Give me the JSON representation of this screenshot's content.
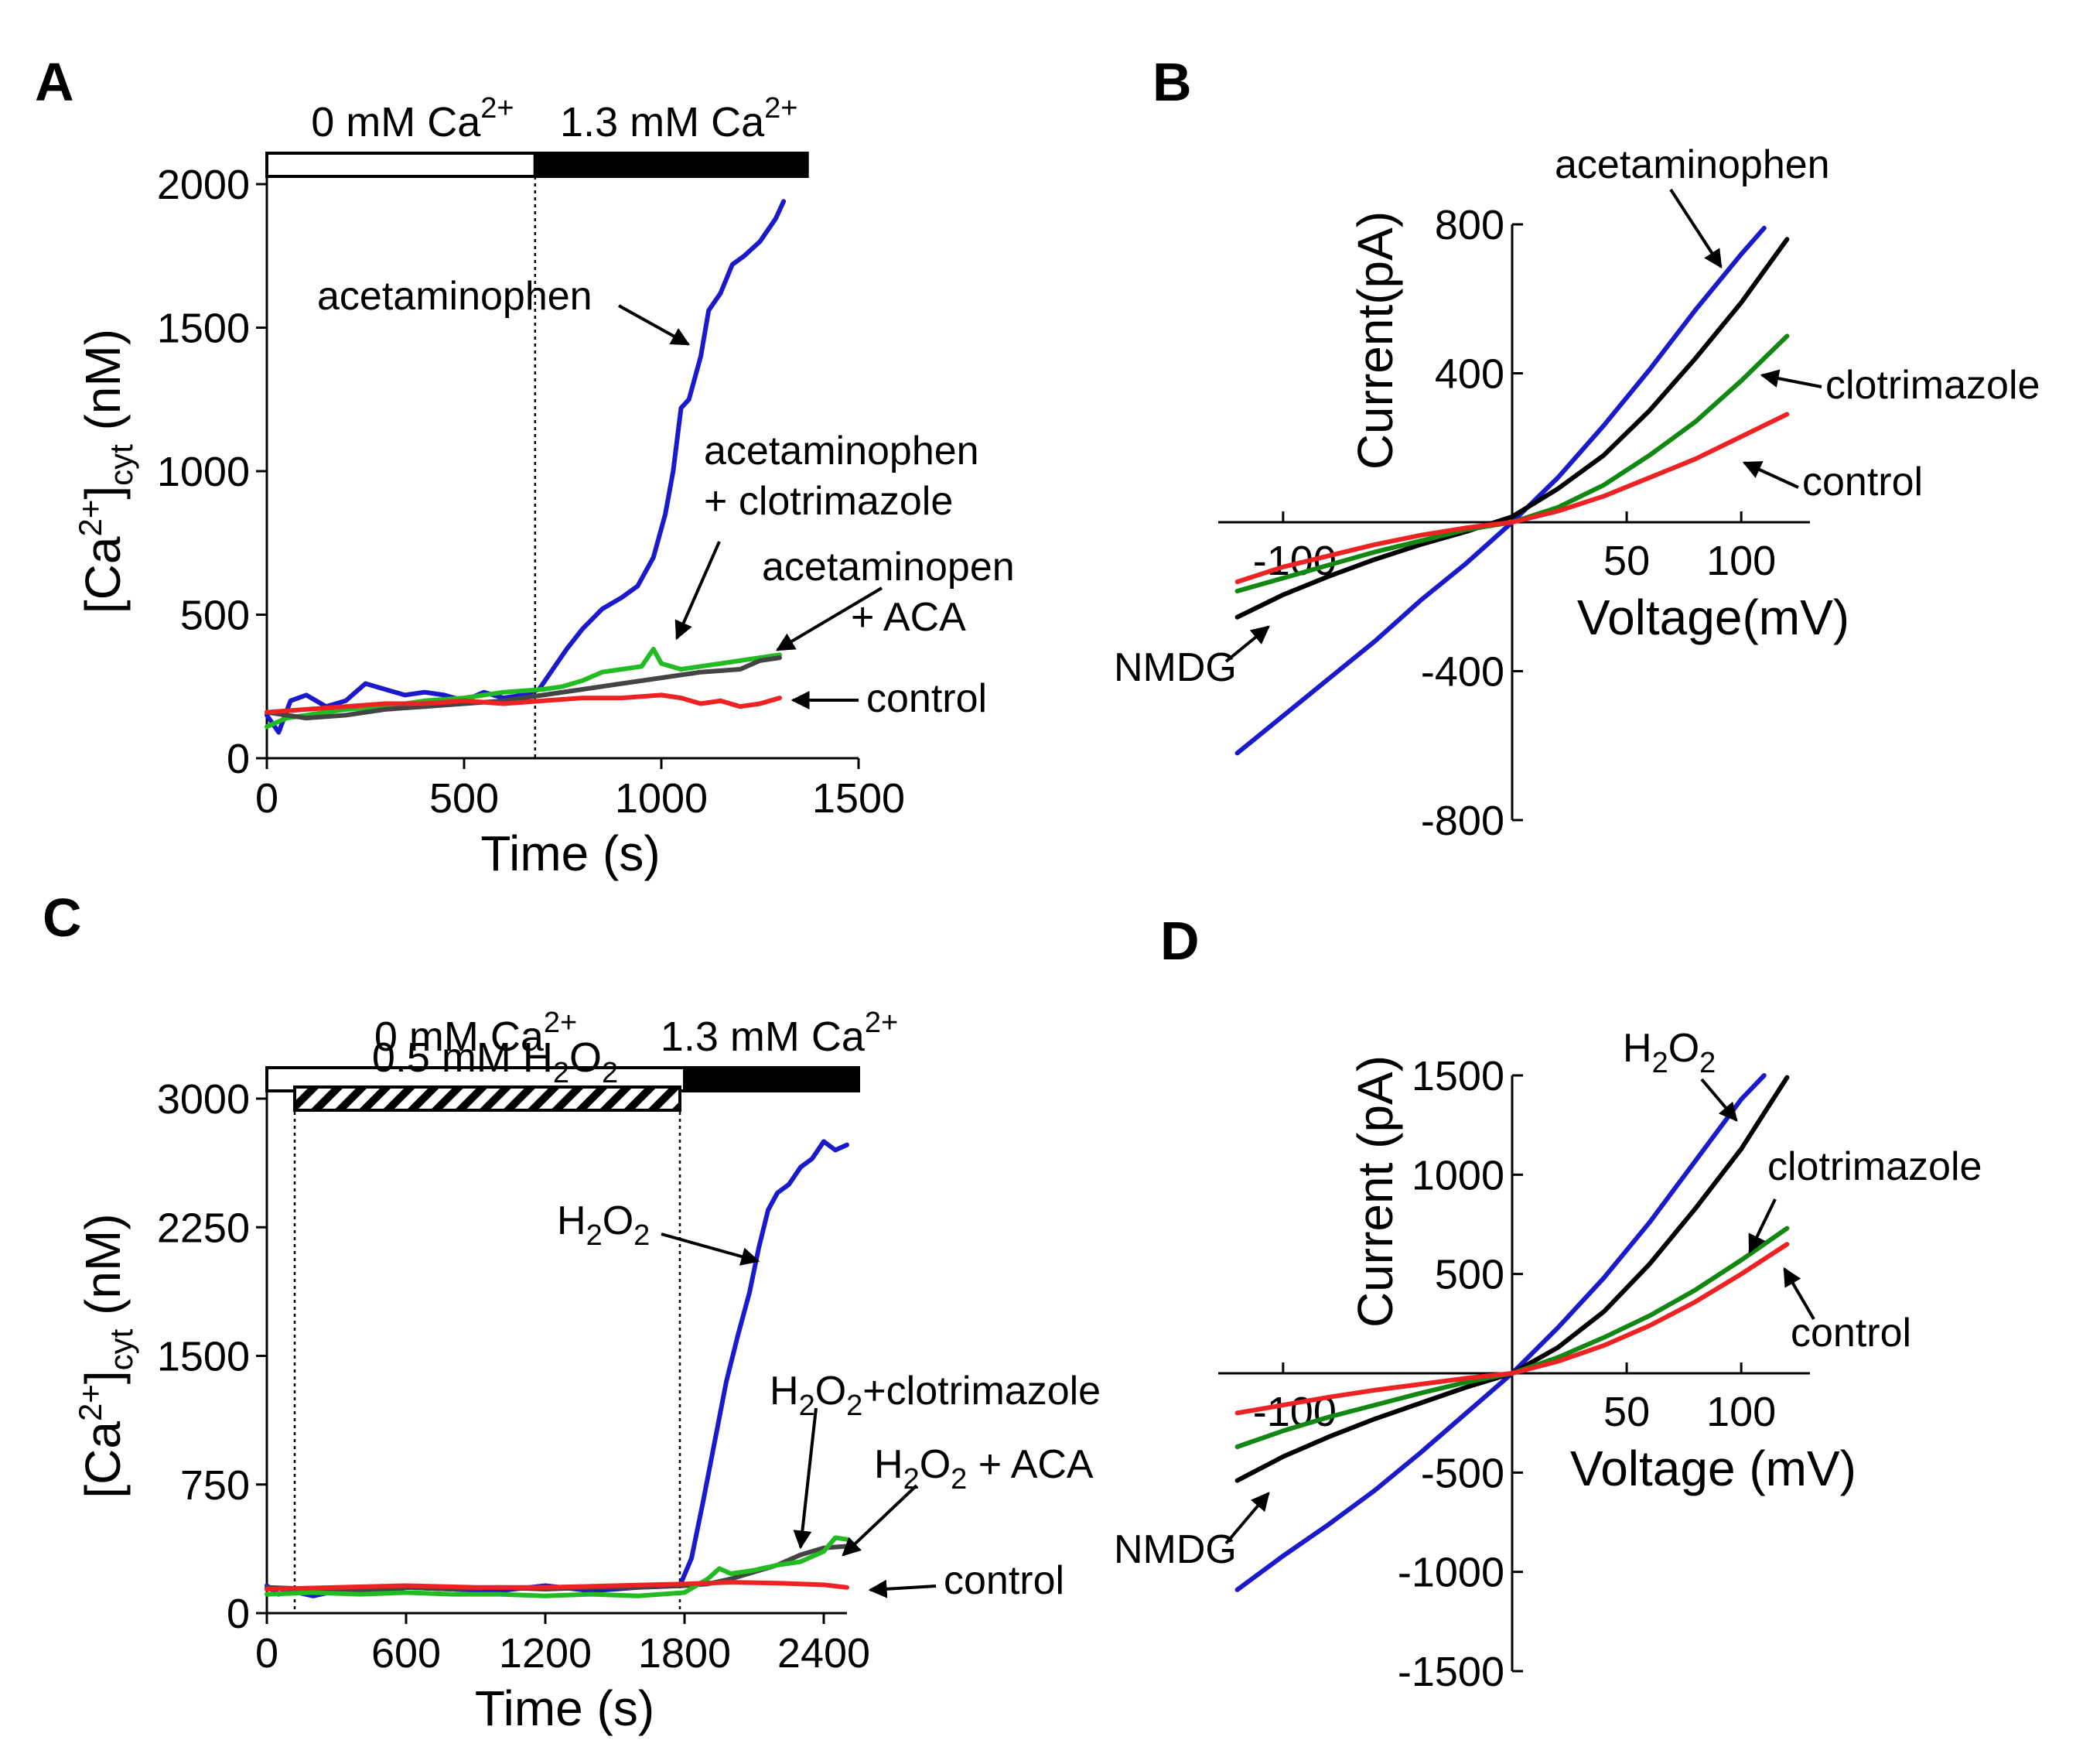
{
  "chart_data": [
    {
      "panel": "A",
      "type": "line",
      "title": "",
      "xlabel": "Time (s)",
      "ylabel_main": "[Ca",
      "ylabel_sup": "2+",
      "ylabel_close": "]",
      "ylabel_sub": "cyt",
      "ylabel_unit": " (nM)",
      "xlim": [
        0,
        1500
      ],
      "ylim": [
        0,
        2000
      ],
      "xticks": [
        0,
        500,
        1000,
        1500
      ],
      "xtick_labels": [
        "0",
        "500",
        "1000",
        "1500"
      ],
      "yticks": [
        0,
        500,
        1000,
        1500,
        2000
      ],
      "ytick_labels": [
        "0",
        "500",
        "1000",
        "1500",
        "2000"
      ],
      "solution_bars": [
        {
          "label": "0 mM Ca",
          "sup": "2+",
          "fill": "#ffffff",
          "x_start": 0,
          "x_end": 680
        },
        {
          "label": "1.3 mM Ca",
          "sup": "2+",
          "fill": "#000000",
          "x_start": 680,
          "x_end": 1370
        }
      ],
      "vlines": [
        680
      ],
      "series": [
        {
          "name": "acetaminophen",
          "color": "#1a1acc",
          "x": [
            0,
            30,
            60,
            100,
            150,
            200,
            250,
            300,
            350,
            400,
            450,
            500,
            550,
            600,
            650,
            690,
            720,
            760,
            800,
            850,
            900,
            940,
            980,
            1010,
            1030,
            1050,
            1070,
            1100,
            1120,
            1150,
            1180,
            1210,
            1250,
            1290,
            1310
          ],
          "y": [
            150,
            90,
            200,
            220,
            180,
            200,
            260,
            240,
            220,
            230,
            220,
            200,
            230,
            210,
            220,
            240,
            300,
            380,
            450,
            520,
            560,
            600,
            700,
            850,
            1000,
            1220,
            1250,
            1400,
            1560,
            1620,
            1720,
            1750,
            1800,
            1880,
            1940
          ]
        },
        {
          "name": "acetaminophen + clotrimazole",
          "color": "#22bb22",
          "x": [
            0,
            50,
            100,
            150,
            200,
            300,
            400,
            500,
            600,
            700,
            750,
            800,
            850,
            900,
            950,
            980,
            1000,
            1050,
            1100,
            1150,
            1200,
            1250,
            1300
          ],
          "y": [
            110,
            140,
            150,
            160,
            170,
            180,
            200,
            210,
            230,
            240,
            250,
            270,
            300,
            310,
            320,
            380,
            330,
            310,
            320,
            330,
            340,
            350,
            360
          ]
        },
        {
          "name": "acetaminopen + ACA",
          "color": "#444444",
          "x": [
            0,
            50,
            100,
            200,
            300,
            400,
            500,
            600,
            700,
            800,
            900,
            1000,
            1100,
            1200,
            1250,
            1300
          ],
          "y": [
            160,
            150,
            140,
            150,
            170,
            180,
            190,
            200,
            220,
            240,
            260,
            280,
            300,
            310,
            340,
            350
          ]
        },
        {
          "name": "control",
          "color": "#ee2222",
          "x": [
            0,
            100,
            200,
            300,
            400,
            500,
            600,
            700,
            800,
            900,
            1000,
            1050,
            1100,
            1150,
            1200,
            1250,
            1300
          ],
          "y": [
            160,
            170,
            180,
            190,
            190,
            200,
            190,
            200,
            210,
            210,
            220,
            210,
            190,
            200,
            180,
            190,
            210
          ]
        }
      ],
      "annotations": [
        {
          "text": "acetaminophen",
          "x": 450,
          "y": 1600,
          "anchor": "start",
          "arrow_x": 1070,
          "arrow_y": 1430
        },
        {
          "text": "acetaminophen",
          "x": 1530,
          "y": 1080,
          "anchor": "start"
        },
        {
          "text": "+ clotrimazole",
          "x": 1530,
          "y": 890,
          "anchor": "start",
          "arrow_x": 1030,
          "arrow_y": 400
        },
        {
          "text": "acetaminopen",
          "x": 1650,
          "y": 660,
          "anchor": "start"
        },
        {
          "text": "+ ACA",
          "x": 1830,
          "y": 470,
          "anchor": "start",
          "arrow_x": 1290,
          "arrow_y": 370
        },
        {
          "text": "control",
          "x": 1860,
          "y": 175,
          "anchor": "start",
          "arrow_x": 1310,
          "arrow_y": 210
        }
      ]
    },
    {
      "panel": "B",
      "type": "line",
      "title": "",
      "xlabel": "Voltage(mV)",
      "ylabel": "Current(pA)",
      "xlim": [
        -130,
        130
      ],
      "ylim": [
        -800,
        800
      ],
      "xticks": [
        -100,
        50,
        100
      ],
      "xtick_labels": [
        "-100",
        "50",
        "100"
      ],
      "yticks": [
        -800,
        -400,
        400,
        800
      ],
      "ytick_labels": [
        "-800",
        "-400",
        "400",
        "800"
      ],
      "series": [
        {
          "name": "acetaminophen",
          "color": "#1a1acc",
          "x": [
            -120,
            -100,
            -80,
            -60,
            -40,
            -20,
            0,
            20,
            40,
            60,
            80,
            100,
            110
          ],
          "y": [
            -620,
            -520,
            -420,
            -320,
            -210,
            -110,
            0,
            120,
            260,
            410,
            570,
            720,
            790
          ]
        },
        {
          "name": "NMDG",
          "color": "#000000",
          "x": [
            -120,
            -100,
            -80,
            -60,
            -40,
            -20,
            0,
            20,
            40,
            60,
            80,
            100,
            120
          ],
          "y": [
            -255,
            -195,
            -145,
            -100,
            -60,
            -25,
            15,
            90,
            180,
            300,
            440,
            590,
            760
          ]
        },
        {
          "name": "clotrimazole",
          "color": "#118811",
          "x": [
            -120,
            -100,
            -80,
            -60,
            -40,
            -20,
            0,
            20,
            40,
            60,
            80,
            100,
            120
          ],
          "y": [
            -185,
            -150,
            -115,
            -80,
            -50,
            -20,
            0,
            40,
            100,
            180,
            270,
            380,
            500
          ]
        },
        {
          "name": "control",
          "color": "#ee2222",
          "x": [
            -120,
            -100,
            -80,
            -60,
            -40,
            -20,
            0,
            20,
            40,
            60,
            80,
            100,
            120
          ],
          "y": [
            -160,
            -120,
            -90,
            -60,
            -35,
            -15,
            0,
            30,
            70,
            120,
            170,
            230,
            290
          ]
        }
      ],
      "annotations": [
        {
          "text": "acetaminophen",
          "x": 2010,
          "y": 230,
          "anchor": "start",
          "arrow_x": 2225,
          "arrow_y": 345
        },
        {
          "text": "clotrimazole",
          "x": 2360,
          "y": 515,
          "anchor": "start",
          "arrow_x": 2278,
          "arrow_y": 485
        },
        {
          "text": "control",
          "x": 2330,
          "y": 640,
          "anchor": "start",
          "arrow_x": 2255,
          "arrow_y": 598
        },
        {
          "text": "NMDG",
          "x": 1440,
          "y": 880,
          "anchor": "start",
          "arrow_x": 1640,
          "arrow_y": 810
        }
      ]
    },
    {
      "panel": "C",
      "type": "line",
      "title": "",
      "xlabel": "Time (s)",
      "ylabel_main": "[Ca",
      "ylabel_sup": "2+",
      "ylabel_close": "]",
      "ylabel_sub": "cyt",
      "ylabel_unit": " (nM)",
      "xlim": [
        0,
        2500
      ],
      "ylim": [
        0,
        3000
      ],
      "xticks": [
        0,
        600,
        1200,
        1800,
        2400
      ],
      "xtick_labels": [
        "0",
        "600",
        "1200",
        "1800",
        "2400"
      ],
      "yticks": [
        0,
        750,
        1500,
        2250,
        3000
      ],
      "ytick_labels": [
        "0",
        "750",
        "1500",
        "2250",
        "3000"
      ],
      "solution_bars": [
        {
          "label": "0 mM Ca",
          "sup": "2+",
          "fill": "#ffffff",
          "x_start": 0,
          "x_end": 1800
        },
        {
          "label": "1.3 mM Ca",
          "sup": "2+",
          "fill": "#000000",
          "x_start": 1800,
          "x_end": 2550
        }
      ],
      "treatment_bar": {
        "label": "0.5 mM",
        "label2": "H",
        "sub2": "2",
        "label3": "O",
        "sub3": "2",
        "x_start": 120,
        "x_end": 1780,
        "y": 3000
      },
      "vlines": [
        120,
        1780
      ],
      "series": [
        {
          "name": "H2O2",
          "color": "#1a1acc",
          "x": [
            0,
            50,
            100,
            200,
            300,
            400,
            500,
            600,
            800,
            1000,
            1200,
            1400,
            1600,
            1780,
            1830,
            1880,
            1930,
            1980,
            2030,
            2080,
            2120,
            2160,
            2200,
            2250,
            2300,
            2350,
            2400,
            2450,
            2500
          ],
          "y": [
            160,
            110,
            130,
            100,
            130,
            150,
            120,
            150,
            140,
            130,
            160,
            130,
            150,
            160,
            320,
            650,
            1000,
            1350,
            1620,
            1870,
            2130,
            2350,
            2450,
            2500,
            2600,
            2650,
            2750,
            2700,
            2730
          ]
        },
        {
          "name": "H2O2+clotrimazole",
          "color": "#444444",
          "x": [
            0,
            200,
            400,
            600,
            800,
            1000,
            1200,
            1400,
            1600,
            1800,
            1900,
            2000,
            2100,
            2200,
            2300,
            2400,
            2500
          ],
          "y": [
            150,
            140,
            130,
            150,
            140,
            150,
            140,
            150,
            150,
            160,
            170,
            200,
            240,
            280,
            340,
            380,
            390
          ]
        },
        {
          "name": "H2O2 + ACA",
          "color": "#22bb22",
          "x": [
            0,
            200,
            400,
            600,
            800,
            1000,
            1200,
            1400,
            1600,
            1800,
            1900,
            1950,
            2000,
            2100,
            2200,
            2300,
            2400,
            2450,
            2500
          ],
          "y": [
            110,
            120,
            110,
            120,
            110,
            110,
            100,
            110,
            100,
            120,
            200,
            260,
            230,
            250,
            280,
            300,
            360,
            440,
            430
          ]
        },
        {
          "name": "control",
          "color": "#ee2222",
          "x": [
            0,
            300,
            600,
            900,
            1200,
            1500,
            1800,
            2000,
            2200,
            2400,
            2500
          ],
          "y": [
            140,
            150,
            160,
            150,
            150,
            160,
            170,
            180,
            175,
            165,
            150
          ]
        }
      ],
      "annotations": [
        {
          "text": "H",
          "sub": "2",
          "text2": "O",
          "sub2": "2",
          "x": 720,
          "y": 1595,
          "anchor": "start",
          "arrow_x": 980,
          "arrow_y": 1630
        },
        {
          "text": "H",
          "sub": "2",
          "text2": "O",
          "sub2": "2",
          "text3": "+clotrimazole",
          "x": 995,
          "y": 1815,
          "anchor": "start",
          "arrow_x": 1035,
          "arrow_y": 2000
        },
        {
          "text": "H",
          "sub": "2",
          "text2": "O",
          "sub2": "2",
          "text3": " + ACA",
          "x": 1130,
          "y": 1910,
          "anchor": "start",
          "arrow_x": 1090,
          "arrow_y": 2010
        },
        {
          "text": "control",
          "x": 1220,
          "y": 2060,
          "anchor": "start",
          "arrow_x": 1125,
          "arrow_y": 2055
        }
      ]
    },
    {
      "panel": "D",
      "type": "line",
      "title": "",
      "xlabel": "Voltage (mV)",
      "ylabel": "Current (pA)",
      "xlim": [
        -130,
        130
      ],
      "ylim": [
        -1500,
        1500
      ],
      "xticks": [
        -100,
        50,
        100
      ],
      "xtick_labels": [
        "-100",
        "50",
        "100"
      ],
      "yticks": [
        -1500,
        -1000,
        -500,
        500,
        1000,
        1500
      ],
      "ytick_labels": [
        "-1500",
        "-1000",
        "-500",
        "500",
        "1000",
        "1500"
      ],
      "series": [
        {
          "name": "H2O2",
          "color": "#1a1acc",
          "x": [
            -120,
            -100,
            -80,
            -60,
            -40,
            -20,
            0,
            20,
            40,
            60,
            80,
            100,
            110
          ],
          "y": [
            -1090,
            -920,
            -760,
            -590,
            -400,
            -200,
            0,
            230,
            480,
            760,
            1070,
            1380,
            1500
          ]
        },
        {
          "name": "NMDG",
          "color": "#000000",
          "x": [
            -120,
            -100,
            -80,
            -60,
            -40,
            -20,
            0,
            20,
            40,
            60,
            80,
            100,
            120
          ],
          "y": [
            -540,
            -420,
            -320,
            -230,
            -150,
            -70,
            0,
            130,
            310,
            550,
            830,
            1130,
            1490
          ]
        },
        {
          "name": "clotrimazole",
          "color": "#118811",
          "x": [
            -120,
            -100,
            -80,
            -60,
            -40,
            -20,
            0,
            20,
            40,
            60,
            80,
            100,
            120
          ],
          "y": [
            -370,
            -290,
            -220,
            -160,
            -100,
            -45,
            0,
            80,
            180,
            290,
            420,
            570,
            730
          ]
        },
        {
          "name": "control",
          "color": "#ee2222",
          "x": [
            -120,
            -100,
            -80,
            -60,
            -40,
            -20,
            0,
            20,
            40,
            60,
            80,
            100,
            120
          ],
          "y": [
            -200,
            -160,
            -120,
            -85,
            -55,
            -25,
            0,
            60,
            140,
            240,
            360,
            500,
            650
          ]
        }
      ],
      "annotations": [
        {
          "text": "H",
          "sub": "2",
          "text2": "O",
          "sub2": "2",
          "x": 2098,
          "y": 1372,
          "anchor": "start",
          "arrow_x": 2245,
          "arrow_y": 1448
        },
        {
          "text": "clotrimazole",
          "x": 2285,
          "y": 1525,
          "anchor": "start",
          "arrow_x": 2262,
          "arrow_y": 1618
        },
        {
          "text": "control",
          "x": 2315,
          "y": 1740,
          "anchor": "start",
          "arrow_x": 2307,
          "arrow_y": 1640
        },
        {
          "text": "NMDG",
          "x": 1440,
          "y": 2020,
          "anchor": "start",
          "arrow_x": 1640,
          "arrow_y": 1930
        }
      ]
    }
  ]
}
